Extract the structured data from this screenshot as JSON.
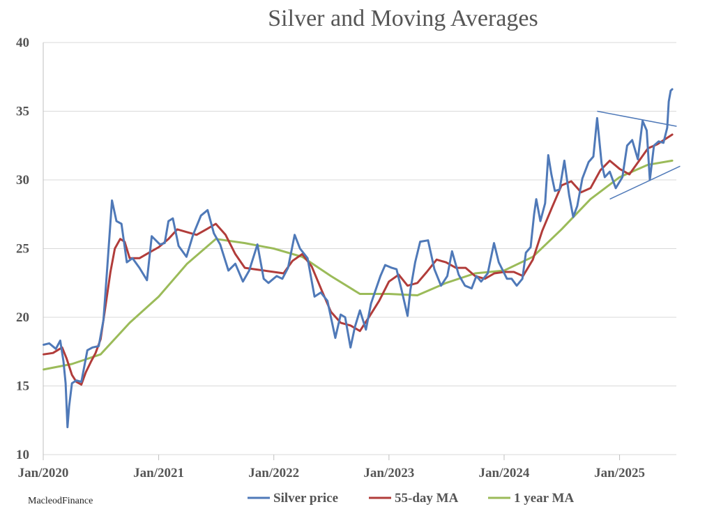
{
  "chart_data": {
    "type": "line",
    "title": "Silver and Moving Averages",
    "xlabel": "",
    "ylabel": "",
    "ylim": [
      10,
      40
    ],
    "yticks": [
      10,
      15,
      20,
      25,
      30,
      35,
      40
    ],
    "xlim": [
      "2020-01",
      "2025-06"
    ],
    "xticks": [
      "Jan/2020",
      "Jan/2021",
      "Jan/2022",
      "Jan/2023",
      "Jan/2024",
      "Jan/2025"
    ],
    "grid": "horizontal",
    "legend_position": "bottom",
    "credit": "MacleodFinance",
    "colors": {
      "silver": "#4f79b8",
      "ma55": "#b13c3a",
      "ma1y": "#9bbb59",
      "grid": "#d9d9d9",
      "trend": "#4f79b8"
    },
    "series": [
      {
        "name": "Silver price",
        "color": "#4f79b8",
        "x": [
          "2020-01-02",
          "2020-01-20",
          "2020-02-10",
          "2020-02-24",
          "2020-03-05",
          "2020-03-12",
          "2020-03-18",
          "2020-03-23",
          "2020-04-01",
          "2020-04-15",
          "2020-05-01",
          "2020-05-20",
          "2020-06-05",
          "2020-06-25",
          "2020-07-10",
          "2020-07-22",
          "2020-08-06",
          "2020-08-20",
          "2020-09-05",
          "2020-09-22",
          "2020-10-10",
          "2020-11-01",
          "2020-11-25",
          "2020-12-10",
          "2021-01-05",
          "2021-01-20",
          "2021-02-01",
          "2021-02-15",
          "2021-03-05",
          "2021-03-30",
          "2021-04-20",
          "2021-05-15",
          "2021-06-05",
          "2021-06-25",
          "2021-07-15",
          "2021-08-10",
          "2021-09-01",
          "2021-09-25",
          "2021-10-15",
          "2021-11-10",
          "2021-11-30",
          "2021-12-15",
          "2022-01-10",
          "2022-01-28",
          "2022-02-15",
          "2022-03-08",
          "2022-03-25",
          "2022-04-18",
          "2022-05-10",
          "2022-05-30",
          "2022-06-20",
          "2022-07-15",
          "2022-08-01",
          "2022-08-15",
          "2022-09-01",
          "2022-09-15",
          "2022-10-01",
          "2022-10-20",
          "2022-11-05",
          "2022-11-20",
          "2022-12-05",
          "2022-12-20",
          "2023-01-10",
          "2023-01-25",
          "2023-02-10",
          "2023-03-01",
          "2023-03-10",
          "2023-03-25",
          "2023-04-10",
          "2023-05-05",
          "2023-05-25",
          "2023-06-15",
          "2023-07-05",
          "2023-07-20",
          "2023-08-10",
          "2023-08-30",
          "2023-09-20",
          "2023-10-05",
          "2023-10-20",
          "2023-11-10",
          "2023-11-30",
          "2023-12-15",
          "2024-01-10",
          "2024-01-25",
          "2024-02-10",
          "2024-02-28",
          "2024-03-10",
          "2024-03-25",
          "2024-04-05",
          "2024-04-12",
          "2024-04-25",
          "2024-05-10",
          "2024-05-20",
          "2024-05-30",
          "2024-06-10",
          "2024-06-25",
          "2024-07-10",
          "2024-07-25",
          "2024-08-07",
          "2024-08-20",
          "2024-09-05",
          "2024-09-25",
          "2024-10-10",
          "2024-10-22",
          "2024-11-05",
          "2024-11-15",
          "2024-12-01",
          "2024-12-20",
          "2025-01-10",
          "2025-01-25",
          "2025-02-10",
          "2025-02-28",
          "2025-03-15",
          "2025-03-28",
          "2025-04-07",
          "2025-04-20",
          "2025-05-05",
          "2025-05-20",
          "2025-06-01",
          "2025-06-06",
          "2025-06-12",
          "2025-06-17"
        ],
        "y": [
          18.0,
          18.1,
          17.7,
          18.3,
          16.8,
          15.2,
          12.0,
          13.5,
          15.2,
          15.4,
          15.3,
          17.6,
          17.8,
          17.9,
          19.8,
          23.6,
          28.5,
          27.0,
          26.8,
          24.0,
          24.3,
          23.6,
          22.7,
          25.9,
          25.3,
          25.4,
          27.0,
          27.2,
          25.2,
          24.4,
          26.0,
          27.4,
          27.8,
          26.1,
          25.3,
          23.4,
          23.9,
          22.6,
          23.4,
          25.3,
          22.8,
          22.5,
          23.0,
          22.8,
          23.6,
          26.0,
          25.0,
          24.3,
          21.5,
          21.8,
          21.2,
          18.5,
          20.2,
          20.0,
          17.8,
          19.3,
          20.5,
          19.1,
          21.0,
          22.0,
          23.0,
          23.8,
          23.6,
          23.5,
          22.0,
          20.1,
          22.0,
          24.0,
          25.5,
          25.6,
          23.5,
          22.3,
          23.0,
          24.8,
          23.1,
          22.3,
          22.1,
          23.0,
          22.6,
          23.2,
          25.4,
          24.0,
          22.8,
          22.8,
          22.3,
          22.8,
          24.7,
          25.1,
          27.5,
          28.6,
          27.0,
          28.3,
          31.8,
          30.4,
          29.2,
          29.3,
          31.4,
          28.9,
          27.3,
          28.1,
          30.1,
          31.3,
          31.7,
          34.5,
          31.2,
          30.2,
          30.6,
          29.4,
          30.2,
          32.5,
          32.9,
          31.5,
          34.3,
          33.6,
          30.0,
          32.5,
          32.8,
          32.7,
          33.8,
          35.7,
          36.5,
          36.6
        ]
      },
      {
        "name": "55-day MA",
        "color": "#b13c3a",
        "x": [
          "2020-01-02",
          "2020-02-01",
          "2020-03-01",
          "2020-03-15",
          "2020-04-01",
          "2020-04-15",
          "2020-05-01",
          "2020-05-15",
          "2020-06-01",
          "2020-06-15",
          "2020-07-01",
          "2020-07-15",
          "2020-08-01",
          "2020-08-15",
          "2020-09-01",
          "2020-09-15",
          "2020-10-01",
          "2020-11-01",
          "2020-12-01",
          "2021-01-01",
          "2021-02-01",
          "2021-03-01",
          "2021-04-01",
          "2021-05-01",
          "2021-06-01",
          "2021-07-01",
          "2021-08-01",
          "2021-09-01",
          "2021-10-01",
          "2021-11-01",
          "2021-12-01",
          "2022-01-01",
          "2022-02-01",
          "2022-03-01",
          "2022-04-01",
          "2022-05-01",
          "2022-06-01",
          "2022-07-01",
          "2022-08-01",
          "2022-09-01",
          "2022-10-01",
          "2022-11-01",
          "2022-12-01",
          "2023-01-01",
          "2023-02-01",
          "2023-03-01",
          "2023-04-01",
          "2023-05-01",
          "2023-06-01",
          "2023-07-01",
          "2023-08-01",
          "2023-09-01",
          "2023-10-01",
          "2023-11-01",
          "2023-12-01",
          "2024-01-01",
          "2024-02-01",
          "2024-03-01",
          "2024-04-01",
          "2024-05-01",
          "2024-06-01",
          "2024-07-01",
          "2024-08-01",
          "2024-09-01",
          "2024-10-01",
          "2024-11-01",
          "2024-12-01",
          "2025-01-01",
          "2025-02-01",
          "2025-03-01",
          "2025-04-01",
          "2025-05-01",
          "2025-06-17"
        ],
        "y": [
          17.3,
          17.4,
          17.8,
          17.0,
          15.8,
          15.3,
          15.1,
          16.0,
          16.8,
          17.4,
          18.4,
          20.6,
          23.3,
          25.0,
          25.7,
          25.5,
          24.3,
          24.3,
          24.7,
          25.1,
          25.7,
          26.4,
          26.2,
          26.0,
          26.4,
          26.8,
          26.0,
          24.6,
          23.6,
          23.5,
          23.4,
          23.3,
          23.2,
          24.1,
          24.6,
          23.7,
          22.0,
          20.4,
          19.6,
          19.4,
          19.0,
          20.1,
          21.2,
          22.6,
          23.1,
          22.3,
          22.5,
          23.3,
          24.2,
          24.0,
          23.6,
          23.6,
          23.0,
          22.8,
          23.2,
          23.3,
          23.3,
          23.0,
          24.2,
          26.3,
          28.0,
          29.6,
          29.9,
          29.1,
          29.4,
          30.7,
          31.4,
          30.8,
          30.4,
          31.3,
          32.3,
          32.6,
          33.3
        ]
      },
      {
        "name": "1 year MA",
        "color": "#9bbb59",
        "x": [
          "2020-01-02",
          "2020-04-01",
          "2020-07-01",
          "2020-10-01",
          "2021-01-01",
          "2021-04-01",
          "2021-07-01",
          "2021-10-01",
          "2022-01-01",
          "2022-04-01",
          "2022-07-01",
          "2022-10-01",
          "2023-01-01",
          "2023-04-01",
          "2023-07-01",
          "2023-10-01",
          "2024-01-01",
          "2024-04-01",
          "2024-07-01",
          "2024-10-01",
          "2025-01-01",
          "2025-04-01",
          "2025-06-17"
        ],
        "y": [
          16.2,
          16.6,
          17.3,
          19.6,
          21.5,
          23.9,
          25.7,
          25.4,
          25.0,
          24.4,
          23.0,
          21.7,
          21.7,
          21.6,
          22.5,
          23.2,
          23.4,
          24.4,
          26.4,
          28.6,
          30.2,
          31.1,
          31.4
        ]
      }
    ],
    "trendlines": [
      {
        "x": [
          "2024-10-22",
          "2025-07-01"
        ],
        "y": [
          35.0,
          33.9
        ]
      },
      {
        "x": [
          "2024-12-01",
          "2025-07-12"
        ],
        "y": [
          28.6,
          31.0
        ]
      }
    ]
  }
}
